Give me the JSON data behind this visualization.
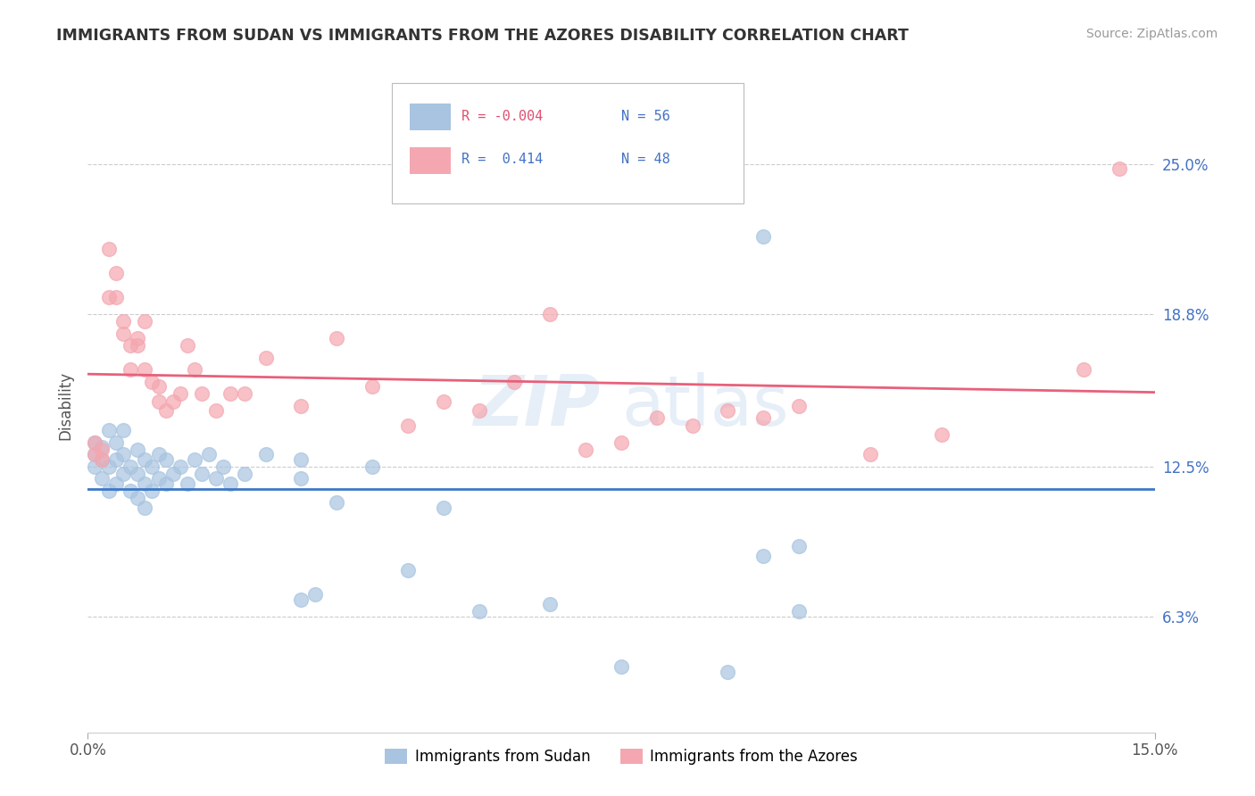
{
  "title": "IMMIGRANTS FROM SUDAN VS IMMIGRANTS FROM THE AZORES DISABILITY CORRELATION CHART",
  "source_text": "Source: ZipAtlas.com",
  "ylabel": "Disability",
  "ytick_labels": [
    "25.0%",
    "18.8%",
    "12.5%",
    "6.3%"
  ],
  "ytick_values": [
    0.25,
    0.188,
    0.125,
    0.063
  ],
  "xlim": [
    0.0,
    0.15
  ],
  "ylim": [
    0.015,
    0.285
  ],
  "color_sudan": "#a8c4e0",
  "color_azores": "#f4a7b0",
  "color_line_sudan": "#3c78c8",
  "color_line_azores": "#e8607a",
  "legend_label1": "Immigrants from Sudan",
  "legend_label2": "Immigrants from the Azores",
  "sudan_x": [
    0.001,
    0.001,
    0.001,
    0.002,
    0.002,
    0.002,
    0.003,
    0.003,
    0.003,
    0.004,
    0.004,
    0.004,
    0.005,
    0.005,
    0.005,
    0.006,
    0.006,
    0.007,
    0.007,
    0.007,
    0.008,
    0.008,
    0.008,
    0.009,
    0.009,
    0.01,
    0.01,
    0.011,
    0.011,
    0.012,
    0.013,
    0.014,
    0.015,
    0.016,
    0.017,
    0.018,
    0.019,
    0.02,
    0.022,
    0.025,
    0.03,
    0.03,
    0.035,
    0.04,
    0.045,
    0.05,
    0.065,
    0.075,
    0.09,
    0.095,
    0.095,
    0.1,
    0.1,
    0.03,
    0.032,
    0.055
  ],
  "sudan_y": [
    0.125,
    0.13,
    0.135,
    0.12,
    0.128,
    0.133,
    0.115,
    0.125,
    0.14,
    0.118,
    0.128,
    0.135,
    0.122,
    0.13,
    0.14,
    0.115,
    0.125,
    0.112,
    0.122,
    0.132,
    0.108,
    0.118,
    0.128,
    0.115,
    0.125,
    0.12,
    0.13,
    0.118,
    0.128,
    0.122,
    0.125,
    0.118,
    0.128,
    0.122,
    0.13,
    0.12,
    0.125,
    0.118,
    0.122,
    0.13,
    0.12,
    0.128,
    0.11,
    0.125,
    0.082,
    0.108,
    0.068,
    0.042,
    0.04,
    0.088,
    0.22,
    0.065,
    0.092,
    0.07,
    0.072,
    0.065
  ],
  "azores_x": [
    0.001,
    0.001,
    0.002,
    0.002,
    0.003,
    0.003,
    0.004,
    0.004,
    0.005,
    0.005,
    0.006,
    0.006,
    0.007,
    0.007,
    0.008,
    0.008,
    0.009,
    0.01,
    0.01,
    0.011,
    0.012,
    0.013,
    0.014,
    0.015,
    0.016,
    0.018,
    0.02,
    0.022,
    0.025,
    0.03,
    0.035,
    0.04,
    0.045,
    0.05,
    0.055,
    0.06,
    0.065,
    0.07,
    0.075,
    0.08,
    0.085,
    0.09,
    0.095,
    0.1,
    0.11,
    0.12,
    0.14,
    0.145
  ],
  "azores_y": [
    0.13,
    0.135,
    0.128,
    0.132,
    0.195,
    0.215,
    0.205,
    0.195,
    0.185,
    0.18,
    0.175,
    0.165,
    0.175,
    0.178,
    0.165,
    0.185,
    0.16,
    0.152,
    0.158,
    0.148,
    0.152,
    0.155,
    0.175,
    0.165,
    0.155,
    0.148,
    0.155,
    0.155,
    0.17,
    0.15,
    0.178,
    0.158,
    0.142,
    0.152,
    0.148,
    0.16,
    0.188,
    0.132,
    0.135,
    0.145,
    0.142,
    0.148,
    0.145,
    0.15,
    0.13,
    0.138,
    0.165,
    0.248
  ]
}
